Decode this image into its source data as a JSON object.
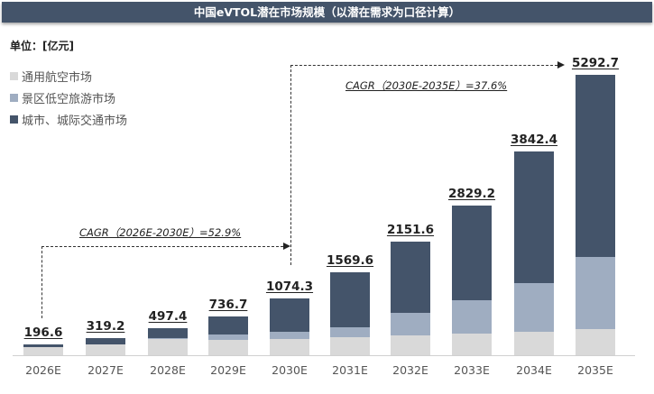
{
  "title": "中国eVTOL潜在市场规模（以潜在需求为口径计算）",
  "unit_label": "单位：[亿元]",
  "legend": [
    {
      "label": "通用航空市场",
      "color": "#d9d9d9"
    },
    {
      "label": "景区低空旅游市场",
      "color": "#9fadc1"
    },
    {
      "label": "城市、城际交通市场",
      "color": "#44546a"
    }
  ],
  "annotations": {
    "cagr1": "CAGR（2026E-2030E）=52.9%",
    "cagr2": "CAGR（2030E-2035E）=37.6%"
  },
  "chart_data": {
    "type": "bar",
    "stacked": true,
    "title": "中国eVTOL潜在市场规模（以潜在需求为口径计算）",
    "ylabel": "单位：[亿元]",
    "xlabel": "",
    "categories": [
      "2026E",
      "2027E",
      "2028E",
      "2029E",
      "2030E",
      "2031E",
      "2032E",
      "2033E",
      "2034E",
      "2035E"
    ],
    "totals": [
      196.6,
      319.2,
      497.4,
      736.7,
      1074.3,
      1569.6,
      2151.6,
      2829.2,
      3842.4,
      5292.7
    ],
    "series": [
      {
        "name": "通用航空市场",
        "color": "#d9d9d9",
        "values": [
          153,
          204,
          306,
          289,
          306,
          340,
          374,
          408,
          442,
          493
        ]
      },
      {
        "name": "景区低空旅游市场",
        "color": "#9fadc1",
        "values": [
          0,
          0,
          11,
          102,
          136,
          187,
          425,
          629,
          918,
          1361
        ]
      },
      {
        "name": "城市、城际交通市场",
        "color": "#44546a",
        "values": [
          43.6,
          115.2,
          180.4,
          345.7,
          632.3,
          1042.6,
          1352.6,
          1792.2,
          2482.4,
          3438.7
        ]
      }
    ],
    "annotations": [
      "CAGR（2026E-2030E）=52.9%",
      "CAGR（2030E-2035E）=37.6%"
    ],
    "grid": false,
    "legend_position": "top-left",
    "ylim": [
      0,
      5500
    ]
  }
}
